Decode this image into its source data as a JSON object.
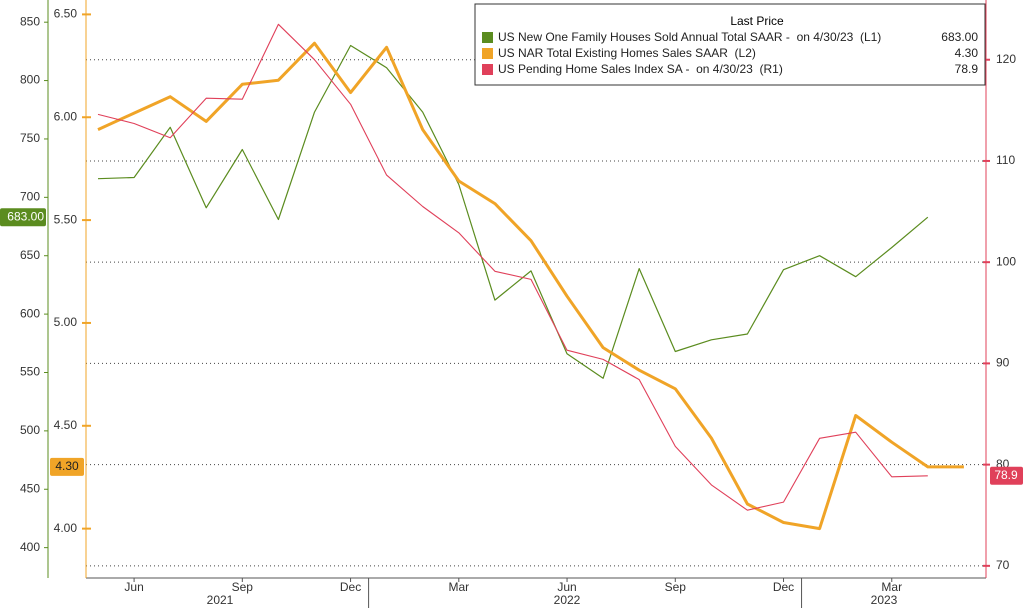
{
  "chart_data": {
    "type": "line",
    "legend_title": "Last Price",
    "categories": [
      null,
      "Jun",
      null,
      null,
      "Sep",
      null,
      null,
      "Dec",
      null,
      null,
      "Mar",
      null,
      null,
      "Jun",
      null,
      null,
      "Sep",
      null,
      null,
      "Dec",
      null,
      null,
      "Mar",
      null,
      null
    ],
    "years": [
      "2021",
      "2022",
      "2023"
    ],
    "series": [
      {
        "name": "US New One Family Houses Sold Annual Total SAAR -  on 4/30/23  (L1)",
        "color": "#5b8c1f",
        "axis": "y",
        "values": [
          716,
          717,
          760,
          691,
          741,
          681,
          773,
          830,
          811,
          773,
          711,
          612,
          637,
          566,
          545,
          639,
          568,
          578,
          583,
          638,
          650,
          632,
          657,
          683,
          null
        ],
        "value_labels": [
          null,
          null,
          null,
          null,
          null,
          null,
          null,
          null,
          null,
          null,
          null,
          null,
          null,
          null,
          null,
          null,
          null,
          null,
          null,
          null,
          null,
          null,
          null,
          "683.00",
          null
        ]
      },
      {
        "name": "US NAR Total Existing Homes Sales SAAR  (L2)",
        "color": "#f0a427",
        "axis": "y2",
        "values": [
          5.94,
          6.02,
          6.1,
          5.98,
          6.16,
          6.18,
          6.36,
          6.12,
          6.34,
          5.94,
          5.69,
          5.58,
          5.4,
          5.13,
          4.88,
          4.77,
          4.68,
          4.44,
          4.12,
          4.03,
          4.0,
          4.55,
          4.42,
          4.3,
          4.3
        ],
        "value_labels": [
          null,
          null,
          null,
          null,
          null,
          null,
          null,
          null,
          null,
          null,
          null,
          null,
          null,
          null,
          null,
          null,
          null,
          null,
          null,
          null,
          null,
          null,
          null,
          null,
          "4.30"
        ]
      },
      {
        "name": "US Pending Home Sales Index SA -  on 4/30/23  (R1)",
        "color": "#e0405a",
        "axis": "y3",
        "values": [
          114.6,
          113.7,
          112.3,
          116.2,
          116.1,
          123.5,
          120.0,
          115.6,
          108.6,
          105.5,
          102.9,
          99.1,
          98.3,
          91.3,
          90.4,
          88.4,
          81.8,
          78.0,
          75.5,
          76.3,
          82.6,
          83.2,
          78.8,
          78.9,
          null
        ],
        "value_labels": [
          null,
          null,
          null,
          null,
          null,
          null,
          null,
          null,
          null,
          null,
          null,
          null,
          null,
          null,
          null,
          null,
          null,
          null,
          null,
          null,
          null,
          null,
          null,
          "78.9",
          null
        ]
      }
    ],
    "ylim": [
      374,
      869
    ],
    "yticks": [
      400,
      450,
      500,
      550,
      600,
      650,
      700,
      750,
      800,
      850
    ],
    "y2lim": [
      3.76,
      6.57
    ],
    "y2ticks": [
      {
        "value": 4,
        "label": "4.00"
      },
      {
        "value": 4.5,
        "label": "4.50"
      },
      {
        "value": 5,
        "label": "5.00"
      },
      {
        "value": 5.5,
        "label": "5.50"
      },
      {
        "value": 6,
        "label": "6.00"
      },
      {
        "value": 6.5,
        "label": "6.50"
      }
    ],
    "y3lim": [
      68.8,
      125.9
    ],
    "y3ticks": [
      70,
      80,
      90,
      100,
      110,
      120
    ],
    "grid": true
  }
}
